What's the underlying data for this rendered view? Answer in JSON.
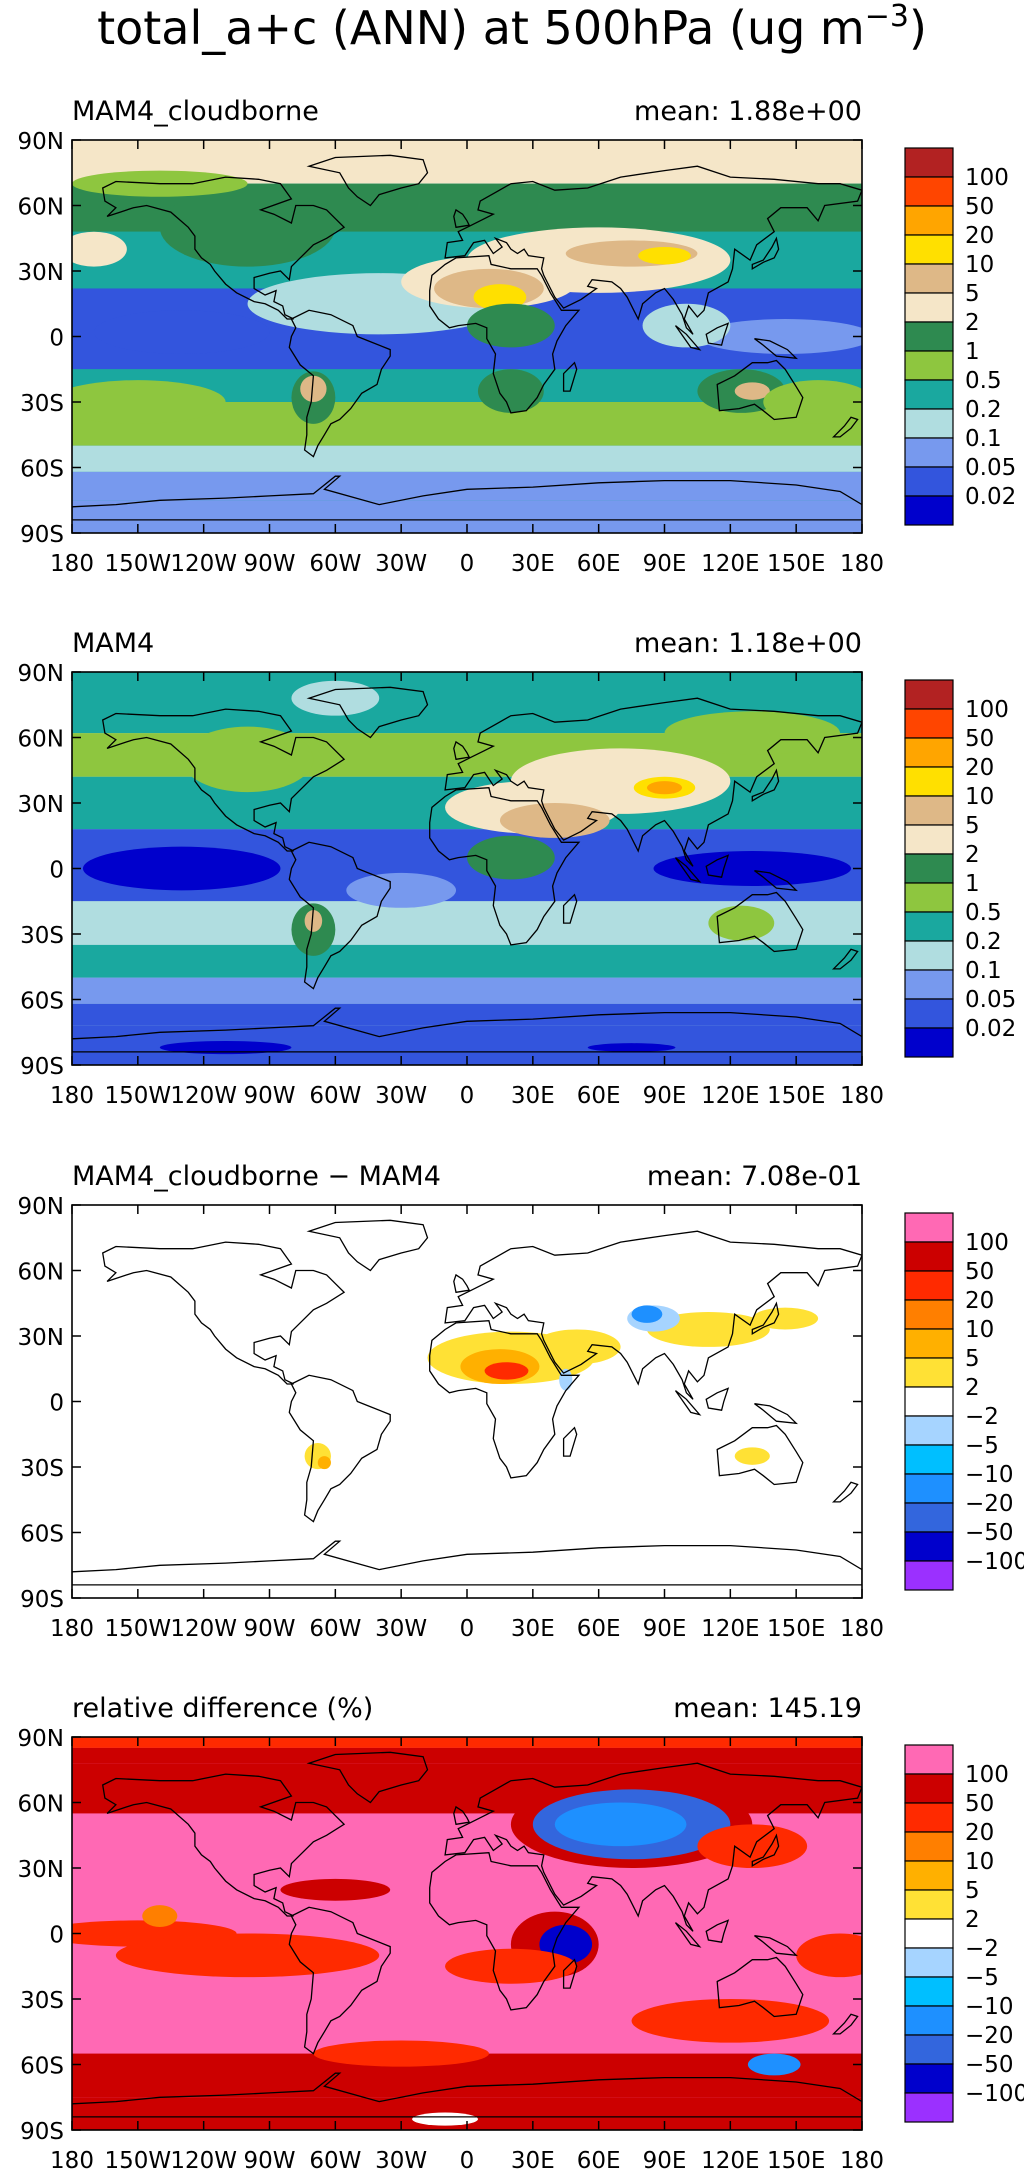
{
  "figure": {
    "title": "total_a+c (ANN) at 500hPa (ug m",
    "title_sup": "−3",
    "title_close": ")"
  },
  "lat_labels": [
    "90N",
    "60N",
    "30N",
    "0",
    "30S",
    "60S",
    "90S"
  ],
  "lon_labels": [
    "180",
    "150W",
    "120W",
    "90W",
    "60W",
    "30W",
    "0",
    "30E",
    "60E",
    "90E",
    "120E",
    "150E",
    "180"
  ],
  "panels": [
    {
      "id": "cloudborne",
      "left_label": "MAM4_cloudborne",
      "mean_text": "mean: 1.88e+00",
      "fill_style": "abs1",
      "colorbar": {
        "colors": [
          "#0000cc",
          "#3355dd",
          "#7799ee",
          "#b0dde0",
          "#1aa89f",
          "#8ec63f",
          "#2e8a50",
          "#f5e6c8",
          "#deb887",
          "#ffe000",
          "#ffa500",
          "#ff4500",
          "#b22222"
        ],
        "labels": [
          "0.02",
          "0.05",
          "0.1",
          "0.2",
          "0.5",
          "1",
          "2",
          "5",
          "10",
          "20",
          "50",
          "100"
        ]
      }
    },
    {
      "id": "mam4",
      "left_label": "MAM4",
      "mean_text": "mean: 1.18e+00",
      "fill_style": "abs2",
      "colorbar": {
        "colors": [
          "#0000cc",
          "#3355dd",
          "#7799ee",
          "#b0dde0",
          "#1aa89f",
          "#8ec63f",
          "#2e8a50",
          "#f5e6c8",
          "#deb887",
          "#ffe000",
          "#ffa500",
          "#ff4500",
          "#b22222"
        ],
        "labels": [
          "0.02",
          "0.05",
          "0.1",
          "0.2",
          "0.5",
          "1",
          "2",
          "5",
          "10",
          "20",
          "50",
          "100"
        ]
      }
    },
    {
      "id": "difference",
      "left_label": "MAM4_cloudborne − MAM4",
      "mean_text": "mean: 7.08e-01",
      "fill_style": "diff",
      "colorbar": {
        "colors": [
          "#9b30ff",
          "#0000cc",
          "#3366dd",
          "#1e90ff",
          "#00bfff",
          "#a6d4ff",
          "#ffffff",
          "#ffe135",
          "#ffb000",
          "#ff7f00",
          "#ff2a00",
          "#cc0000",
          "#ff69b4"
        ],
        "labels": [
          "−100",
          "−50",
          "−20",
          "−10",
          "−5",
          "−2",
          "2",
          "5",
          "10",
          "20",
          "50",
          "100"
        ]
      }
    },
    {
      "id": "relative",
      "left_label": "relative difference (%)",
      "mean_text": "mean: 145.19",
      "fill_style": "rel",
      "colorbar": {
        "colors": [
          "#9b30ff",
          "#0000cc",
          "#3366dd",
          "#1e90ff",
          "#00bfff",
          "#a6d4ff",
          "#ffffff",
          "#ffe135",
          "#ffb000",
          "#ff7f00",
          "#ff2a00",
          "#cc0000",
          "#ff69b4"
        ],
        "labels": [
          "−100",
          "−50",
          "−20",
          "−10",
          "−5",
          "−2",
          "2",
          "5",
          "10",
          "20",
          "50",
          "100"
        ]
      }
    }
  ]
}
